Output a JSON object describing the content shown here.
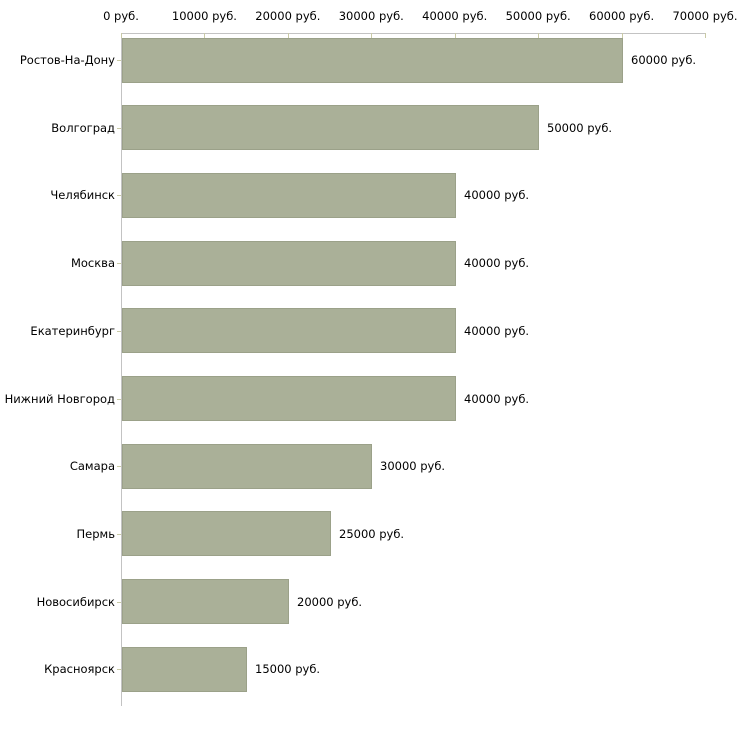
{
  "chart_data": {
    "type": "bar",
    "orientation": "horizontal",
    "title": "",
    "xlabel": "",
    "ylabel": "",
    "categories": [
      "Ростов-На-Дону",
      "Волгоград",
      "Челябинск",
      "Москва",
      "Екатеринбург",
      "Нижний Новгород",
      "Самара",
      "Пермь",
      "Новосибирск",
      "Красноярск"
    ],
    "values": [
      60000,
      50000,
      40000,
      40000,
      40000,
      40000,
      30000,
      25000,
      20000,
      15000
    ],
    "value_labels": [
      "60000 руб.",
      "50000 руб.",
      "40000 руб.",
      "40000 руб.",
      "40000 руб.",
      "40000 руб.",
      "30000 руб.",
      "25000 руб.",
      "20000 руб.",
      "15000 руб."
    ],
    "axis_ticks": [
      0,
      10000,
      20000,
      30000,
      40000,
      50000,
      60000,
      70000
    ],
    "axis_tick_labels": [
      "0 руб.",
      "10000 руб.",
      "20000 руб.",
      "30000 руб.",
      "40000 руб.",
      "50000 руб.",
      "60000 руб.",
      "70000 руб."
    ],
    "xlim": [
      0,
      70000
    ],
    "legend_position": "none",
    "grid": false,
    "colors": {
      "bar_fill": "#aab098",
      "axis_line": "#c3c3c3",
      "tick_mark": "#c9caa6",
      "text": "#000000",
      "background": "#ffffff"
    }
  }
}
